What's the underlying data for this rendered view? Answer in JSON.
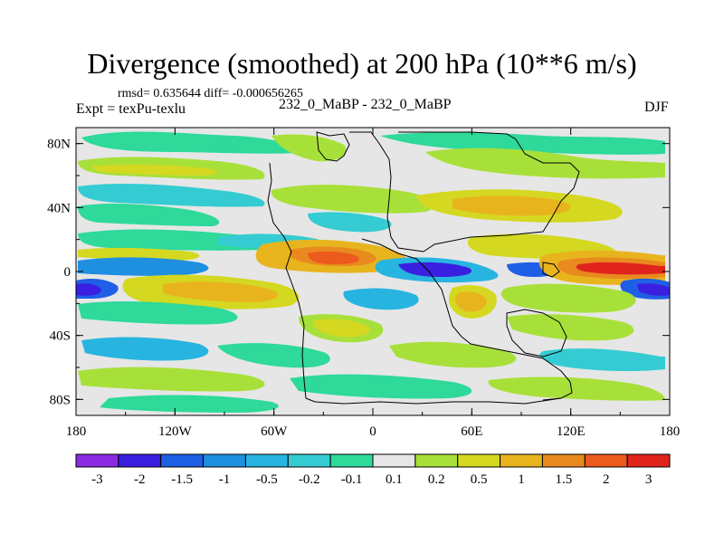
{
  "chart_data": {
    "type": "heatmap",
    "title": "Divergence (smoothed) at 200 hPa (10**6 m/s)",
    "stats_line": "rmsd= 0.635644  diff= -0.000656265",
    "left_label": "Expt = texPu-texlu",
    "center_label": "232_0_MaBP - 232_0_MaBP",
    "right_label": "DJF",
    "x_axis": {
      "range": [
        -180,
        180
      ],
      "ticks": [
        "180",
        "120W",
        "60W",
        "0",
        "60E",
        "120E",
        "180"
      ]
    },
    "y_axis": {
      "range": [
        -90,
        90
      ],
      "ticks": [
        "80N",
        "40N",
        "0",
        "40S",
        "80S"
      ]
    },
    "colorbar": {
      "labels": [
        "-3",
        "-2",
        "-1.5",
        "-1",
        "-0.5",
        "-0.2",
        "-0.1",
        "0.1",
        "0.2",
        "0.5",
        "1",
        "1.5",
        "2",
        "3"
      ],
      "colors": [
        "#8a2be2",
        "#3a1fe0",
        "#1f5fe6",
        "#1f8fe0",
        "#28b4e0",
        "#34ccd2",
        "#2ed99a",
        "#e6e6e6",
        "#a8e03a",
        "#d4d820",
        "#e8b41e",
        "#e88a1e",
        "#ec5a1e",
        "#e0241c"
      ]
    }
  }
}
